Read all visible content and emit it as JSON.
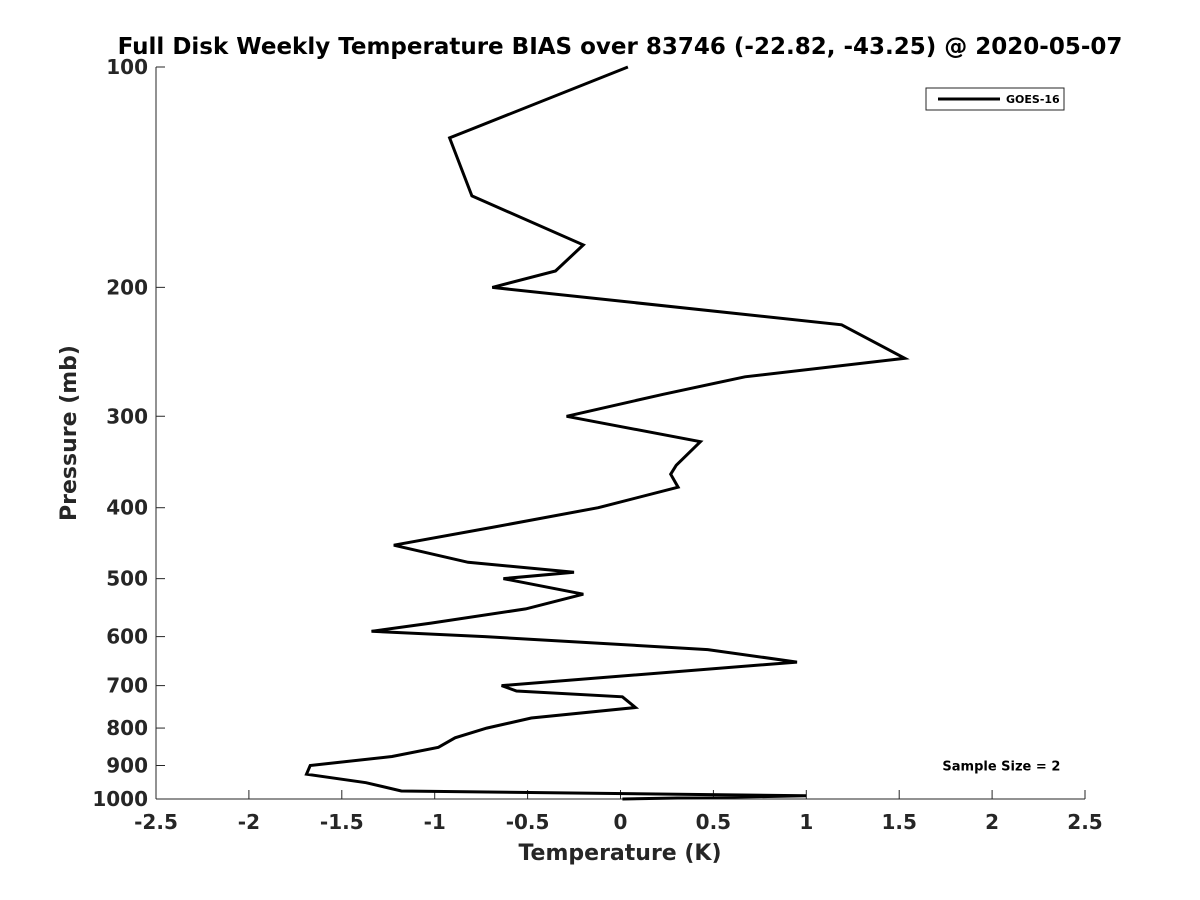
{
  "chart_data": {
    "type": "line",
    "title": "Full Disk Weekly Temperature BIAS over 83746 (-22.82, -43.25) @ 2020-05-07",
    "xlabel": "Temperature (K)",
    "ylabel": "Pressure (mb)",
    "xlim": [
      -2.5,
      2.5
    ],
    "ylim": [
      100,
      1000
    ],
    "y_scale": "log",
    "y_reversed": true,
    "grid": false,
    "legend_position": "top-right",
    "x_ticks": [
      -2.5,
      -2,
      -1.5,
      -1,
      -0.5,
      0,
      0.5,
      1,
      1.5,
      2,
      2.5
    ],
    "x_tick_labels": [
      "-2.5",
      "-2",
      "-1.5",
      "-1",
      "-0.5",
      "0",
      "0.5",
      "1",
      "1.5",
      "2",
      "2.5"
    ],
    "y_ticks": [
      100,
      200,
      300,
      400,
      500,
      600,
      700,
      800,
      900,
      1000
    ],
    "y_tick_labels": [
      "100",
      "200",
      "300",
      "400",
      "500",
      "600",
      "700",
      "800",
      "900",
      "1000"
    ],
    "series": [
      {
        "name": "GOES-16",
        "color": "#000000",
        "points": [
          {
            "x": 0.04,
            "y": 100
          },
          {
            "x": -0.92,
            "y": 125
          },
          {
            "x": -0.8,
            "y": 150
          },
          {
            "x": -0.2,
            "y": 175
          },
          {
            "x": -0.35,
            "y": 190
          },
          {
            "x": -0.69,
            "y": 200
          },
          {
            "x": 1.19,
            "y": 225
          },
          {
            "x": 1.53,
            "y": 250
          },
          {
            "x": 0.67,
            "y": 265
          },
          {
            "x": 0.23,
            "y": 280
          },
          {
            "x": -0.29,
            "y": 300
          },
          {
            "x": 0.43,
            "y": 325
          },
          {
            "x": 0.3,
            "y": 350
          },
          {
            "x": 0.27,
            "y": 360
          },
          {
            "x": 0.31,
            "y": 375
          },
          {
            "x": -0.12,
            "y": 400
          },
          {
            "x": -0.68,
            "y": 425
          },
          {
            "x": -1.22,
            "y": 450
          },
          {
            "x": -0.82,
            "y": 475
          },
          {
            "x": -0.25,
            "y": 490
          },
          {
            "x": -0.63,
            "y": 500
          },
          {
            "x": -0.2,
            "y": 525
          },
          {
            "x": -0.51,
            "y": 550
          },
          {
            "x": -1.02,
            "y": 575
          },
          {
            "x": -1.34,
            "y": 590
          },
          {
            "x": -0.73,
            "y": 600
          },
          {
            "x": 0.47,
            "y": 625
          },
          {
            "x": 0.95,
            "y": 650
          },
          {
            "x": -0.64,
            "y": 700
          },
          {
            "x": -0.56,
            "y": 712
          },
          {
            "x": 0.01,
            "y": 725
          },
          {
            "x": 0.08,
            "y": 750
          },
          {
            "x": -0.48,
            "y": 775
          },
          {
            "x": -0.72,
            "y": 800
          },
          {
            "x": -0.89,
            "y": 825
          },
          {
            "x": -0.98,
            "y": 850
          },
          {
            "x": -1.23,
            "y": 875
          },
          {
            "x": -1.67,
            "y": 900
          },
          {
            "x": -1.69,
            "y": 925
          },
          {
            "x": -1.37,
            "y": 950
          },
          {
            "x": -1.18,
            "y": 975
          },
          {
            "x": 1.0,
            "y": 990
          },
          {
            "x": 0.01,
            "y": 1000
          }
        ]
      }
    ],
    "annotations": [
      {
        "text": "Sample Size = 2",
        "x": 2.05,
        "y": 900
      }
    ]
  }
}
